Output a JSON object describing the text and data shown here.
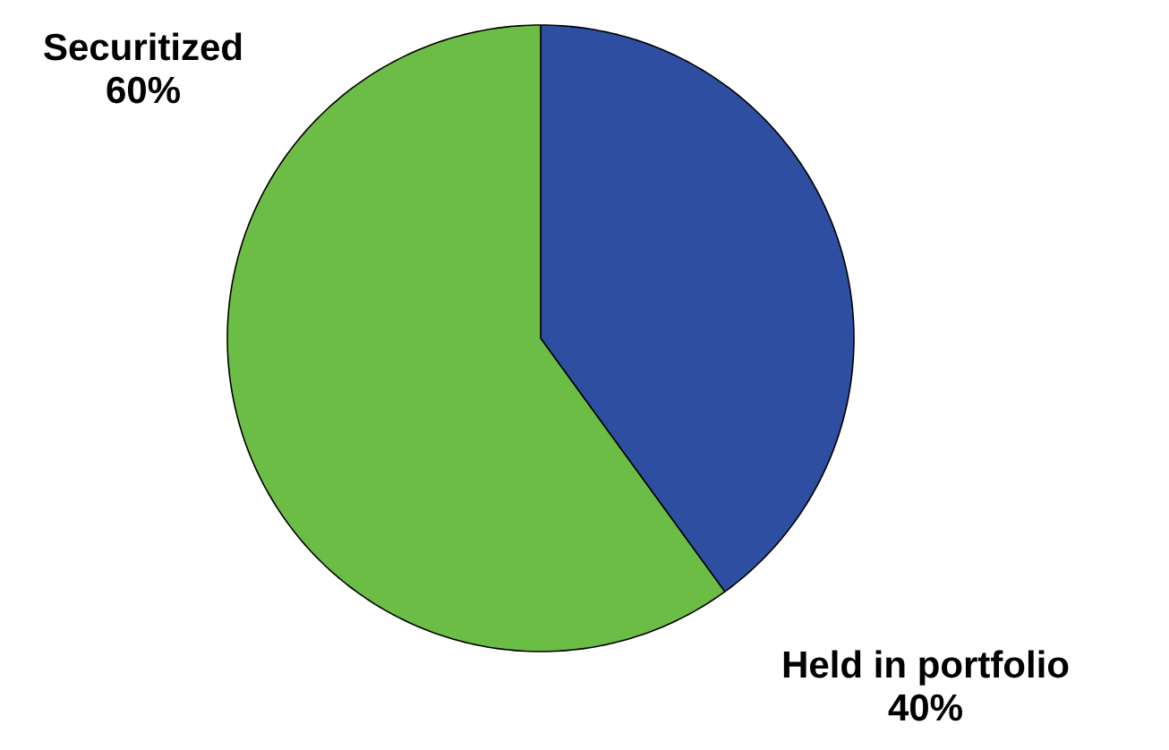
{
  "chart_data": {
    "type": "pie",
    "categories": [
      "Held in portfolio",
      "Securitized"
    ],
    "values": [
      40,
      60
    ],
    "colors": [
      "#2e4fa1",
      "#6cbd45"
    ],
    "value_labels": [
      "40%",
      "60%"
    ]
  }
}
